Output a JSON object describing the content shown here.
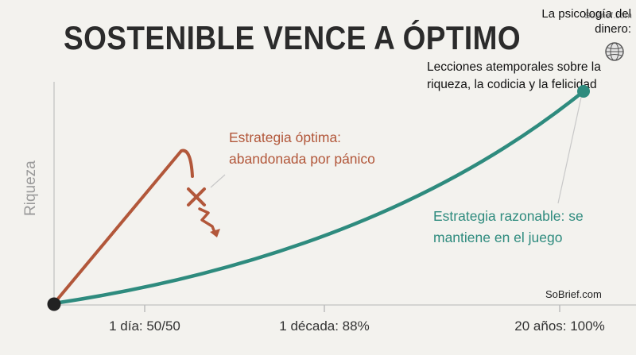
{
  "title": "SOSTENIBLE VENCE A ÓPTIMO",
  "book": {
    "title": "La psicología del dinero:",
    "brand": "SoBrief.com",
    "subtitle": "Lecciones atemporales sobre la riqueza, la codicia y la felicidad",
    "icon": "globe-icon"
  },
  "source": "SoBrief.com",
  "chart_data": {
    "type": "line",
    "ylabel": "Riqueza",
    "xlabel": "",
    "ticks": [
      "1 día: 50/50",
      "1 década: 88%",
      "20 años: 100%"
    ],
    "series": [
      {
        "name": "Estrategia óptima: abandonada por pánico",
        "color": "#b2573a",
        "note": "abandoned — crash marked with an X and a falling arrow"
      },
      {
        "name": "Estrategia razonable: se mantiene en el juego",
        "color": "#2e8b7e"
      }
    ],
    "annotations": [
      "Estrategia óptima: abandonada por pánico",
      "Estrategia razonable: se mantiene en el juego"
    ],
    "grid": false
  }
}
